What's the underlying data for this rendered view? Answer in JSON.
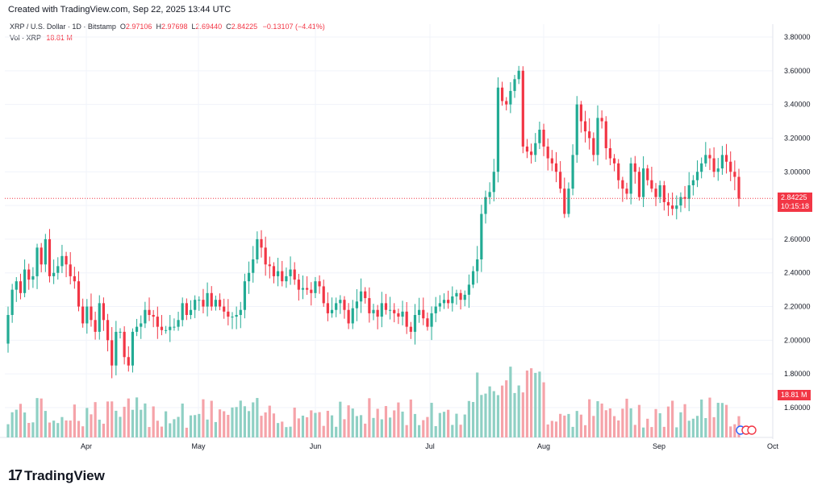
{
  "header": {
    "created": "Created with TradingView.com, Sep 22, 2025 13:44 UTC"
  },
  "legend": {
    "symbol": "XRP / U.S. Dollar · 1D · Bitstamp",
    "o_label": "O",
    "o_value": "2.97106",
    "h_label": "H",
    "h_value": "2.97698",
    "l_label": "L",
    "l_value": "2.69440",
    "c_label": "C",
    "c_value": "2.84225",
    "change": "−0.13107 (−4.41%)",
    "vol_label": "Vol · XRP",
    "vol_value": "18.81 M"
  },
  "price_tag": {
    "price": "2.84225",
    "countdown": "10:15:18"
  },
  "volume_tag": "18.81 M",
  "brand": "TradingView",
  "colors": {
    "up": "#22ab94",
    "down": "#f23645",
    "vol_up": "#8fd0c4",
    "vol_down": "#f5a3a9"
  },
  "chart_data": {
    "type": "candlestick",
    "y_axis": {
      "ticks": [
        "3.80000",
        "3.60000",
        "3.40000",
        "3.20000",
        "3.00000",
        "2.80000",
        "2.60000",
        "2.40000",
        "2.20000",
        "2.00000",
        "1.80000",
        "1.60000"
      ],
      "range": [
        1.45,
        3.85
      ]
    },
    "x_axis": {
      "ticks": [
        "Apr",
        "May",
        "Jun",
        "Jul",
        "Aug",
        "Sep",
        "Oct"
      ]
    },
    "series_close": [
      2.15,
      2.3,
      2.35,
      2.28,
      2.42,
      2.36,
      2.38,
      2.55,
      2.45,
      2.6,
      2.38,
      2.4,
      2.44,
      2.5,
      2.45,
      2.38,
      2.35,
      2.2,
      2.1,
      2.2,
      2.12,
      2.05,
      2.22,
      2.12,
      2.0,
      1.85,
      2.05,
      2.05,
      1.9,
      1.85,
      2.05,
      2.08,
      2.1,
      2.18,
      2.15,
      2.14,
      2.08,
      2.06,
      2.06,
      2.08,
      2.08,
      2.12,
      2.22,
      2.15,
      2.18,
      2.24,
      2.24,
      2.2,
      2.28,
      2.2,
      2.24,
      2.2,
      2.17,
      2.14,
      2.14,
      2.15,
      2.18,
      2.35,
      2.4,
      2.48,
      2.6,
      2.55,
      2.45,
      2.44,
      2.38,
      2.41,
      2.35,
      2.38,
      2.42,
      2.36,
      2.3,
      2.31,
      2.3,
      2.28,
      2.35,
      2.32,
      2.22,
      2.16,
      2.18,
      2.22,
      2.24,
      2.18,
      2.1,
      2.19,
      2.23,
      2.29,
      2.25,
      2.16,
      2.18,
      2.14,
      2.22,
      2.18,
      2.18,
      2.16,
      2.14,
      2.17,
      2.08,
      2.05,
      2.15,
      2.18,
      2.13,
      2.08,
      2.16,
      2.2,
      2.22,
      2.24,
      2.22,
      2.26,
      2.28,
      2.24,
      2.27,
      2.33,
      2.41,
      2.48,
      2.75,
      2.85,
      2.88,
      3.0,
      3.5,
      3.42,
      3.4,
      3.48,
      3.55,
      3.6,
      3.15,
      3.12,
      3.1,
      3.17,
      3.25,
      3.15,
      3.08,
      3.05,
      3.0,
      2.9,
      2.75,
      2.9,
      3.1,
      3.4,
      3.3,
      3.24,
      3.2,
      3.1,
      3.32,
      3.3,
      3.14,
      3.08,
      3.05,
      2.95,
      2.9,
      2.87,
      3.05,
      3.0,
      2.85,
      3.02,
      2.95,
      2.9,
      2.85,
      2.92,
      2.82,
      2.8,
      2.78,
      2.8,
      2.85,
      2.84,
      2.92,
      2.95,
      3.0,
      3.05,
      3.1,
      3.08,
      3.0,
      3.02,
      3.1,
      3.06,
      3.0,
      2.97,
      2.84
    ],
    "volume_value_shown": "18.81 M",
    "last_close": 2.84225
  }
}
